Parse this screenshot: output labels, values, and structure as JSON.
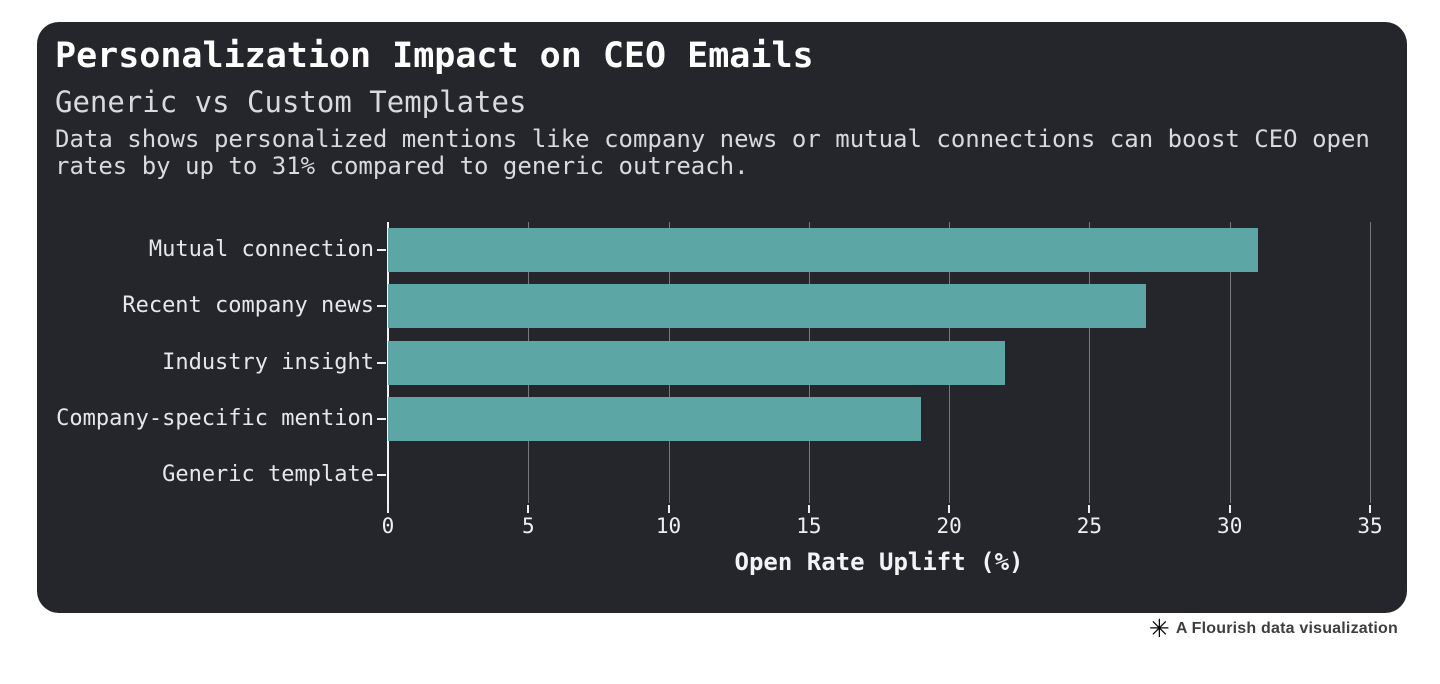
{
  "page": {
    "background": "#ffffff"
  },
  "card": {
    "background": "#24262b",
    "title": "Personalization Impact on CEO Emails",
    "subtitle": "Generic vs Custom Templates",
    "description": "Data shows personalized mentions like company news or mutual connections can boost CEO open rates by up to 31% compared to generic outreach.",
    "title_color": "#ffffff",
    "subtitle_color": "#d8dadc",
    "description_color": "#d8dadc"
  },
  "chart_data": {
    "type": "bar",
    "orientation": "horizontal",
    "title": "Personalization Impact on CEO Emails",
    "subtitle": "Generic vs Custom Templates",
    "categories": [
      "Mutual connection",
      "Recent company news",
      "Industry insight",
      "Company-specific mention",
      "Generic template"
    ],
    "values": [
      31,
      27,
      22,
      19,
      0
    ],
    "xlabel": "Open Rate Uplift (%)",
    "ylabel": "",
    "xlim": [
      0,
      35
    ],
    "xticks": [
      0,
      5,
      10,
      15,
      20,
      25,
      30,
      35
    ],
    "grid": true,
    "legend": false,
    "bar_color": "#5ca7a5",
    "gridline_color": "#dbe0e4",
    "axis_line_color": "#f2f3f4",
    "category_label_color": "#e5e7e9",
    "tick_label_color": "#edeff0",
    "xlabel_color": "#f2f3f4"
  },
  "footer": {
    "logo_icon": "✳",
    "text": "A Flourish data visualization"
  }
}
